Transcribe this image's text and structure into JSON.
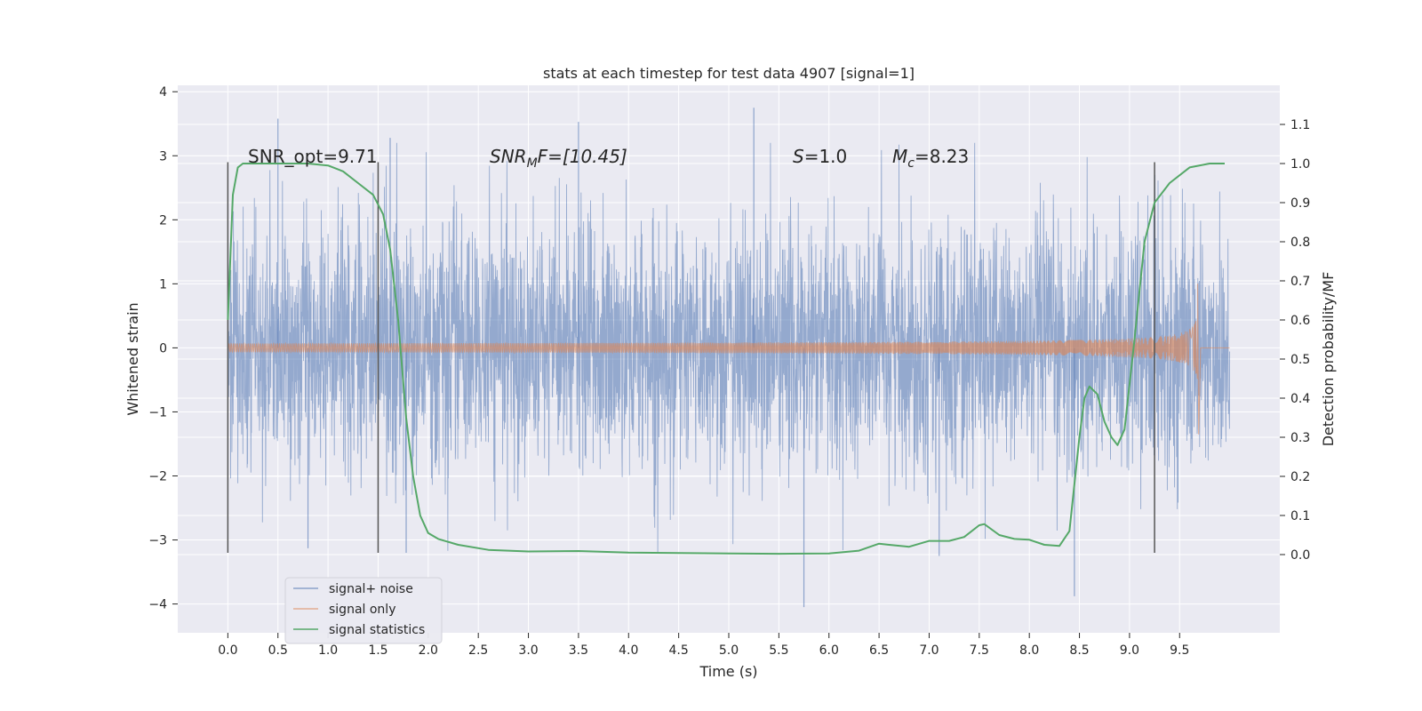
{
  "chart_data": {
    "type": "line",
    "title": "stats at each timestep for test data 4907 [signal=1]",
    "xlabel": "Time (s)",
    "ylabel_left": "Whitened strain",
    "ylabel_right": "Detection probability/MF",
    "xlim": [
      -0.5,
      10.5
    ],
    "ylim_left": [
      -4.45,
      4.1
    ],
    "ylim_right": [
      -0.2,
      1.2
    ],
    "x_ticks": [
      "0.0",
      "0.5",
      "1.0",
      "1.5",
      "2.0",
      "2.5",
      "3.0",
      "3.5",
      "4.0",
      "4.5",
      "5.0",
      "5.5",
      "6.0",
      "6.5",
      "7.0",
      "7.5",
      "8.0",
      "8.5",
      "9.0",
      "9.5"
    ],
    "y_ticks_left": [
      "4",
      "3",
      "2",
      "1",
      "0",
      "−1",
      "−2",
      "−3",
      "−4"
    ],
    "y_ticks_right": [
      "1.1",
      "1.0",
      "0.9",
      "0.8",
      "0.7",
      "0.6",
      "0.5",
      "0.4",
      "0.3",
      "0.2",
      "0.1",
      "0.0"
    ],
    "grid": true,
    "legend_position": "lower-left",
    "annotations": {
      "snr_opt": "SNR_opt=9.71",
      "snr_mf_prefix": "SNR",
      "snr_mf_sub": "M",
      "snr_mf_suffix": "F=[10.45]",
      "s_prefix": "S",
      "s_value": "=1.0",
      "mc_prefix": "M",
      "mc_sub": "c",
      "mc_value": "=8.23"
    },
    "vertical_markers_x": [
      0.0,
      1.5,
      9.25
    ],
    "series": [
      {
        "name": "signal+ noise",
        "color": "#4c72b0",
        "x_range": [
          0.0,
          10.0
        ],
        "envelope_typical": [
          -1.9,
          2.0
        ],
        "spikes": [
          {
            "x": 0.5,
            "y": 3.58
          },
          {
            "x": 1.62,
            "y": 3.28
          },
          {
            "x": 3.5,
            "y": 3.53
          },
          {
            "x": 5.25,
            "y": 3.75
          },
          {
            "x": 1.78,
            "y": -3.2
          },
          {
            "x": 0.8,
            "y": -3.13
          },
          {
            "x": 5.75,
            "y": -4.05
          },
          {
            "x": 8.45,
            "y": -3.88
          },
          {
            "x": 7.1,
            "y": -3.25
          }
        ]
      },
      {
        "name": "signal only",
        "color": "#dd8452",
        "x_range": [
          0.0,
          10.0
        ],
        "chirp_merger_x": 9.68,
        "chirp_peak_amplitude": 1.0,
        "chirp_min": -1.35
      },
      {
        "name": "signal statistics",
        "color": "#55a868",
        "x": [
          0.0,
          0.05,
          0.1,
          0.15,
          0.25,
          0.5,
          0.8,
          1.0,
          1.15,
          1.3,
          1.45,
          1.55,
          1.62,
          1.7,
          1.78,
          1.85,
          1.92,
          2.0,
          2.1,
          2.3,
          2.6,
          3.0,
          3.5,
          4.0,
          4.5,
          5.0,
          5.5,
          6.0,
          6.3,
          6.5,
          6.6,
          6.8,
          7.0,
          7.2,
          7.35,
          7.5,
          7.55,
          7.7,
          7.85,
          8.0,
          8.15,
          8.3,
          8.4,
          8.5,
          8.55,
          8.6,
          8.68,
          8.75,
          8.82,
          8.88,
          8.95,
          9.05,
          9.15,
          9.25,
          9.4,
          9.6,
          9.8,
          9.95
        ],
        "y": [
          0.6,
          0.92,
          0.99,
          1.0,
          1.0,
          1.0,
          1.0,
          0.995,
          0.98,
          0.95,
          0.92,
          0.87,
          0.78,
          0.6,
          0.35,
          0.2,
          0.1,
          0.055,
          0.04,
          0.025,
          0.012,
          0.008,
          0.009,
          0.005,
          0.004,
          0.003,
          0.002,
          0.003,
          0.01,
          0.028,
          0.025,
          0.02,
          0.035,
          0.035,
          0.045,
          0.075,
          0.078,
          0.05,
          0.04,
          0.038,
          0.025,
          0.022,
          0.06,
          0.3,
          0.4,
          0.43,
          0.41,
          0.34,
          0.3,
          0.28,
          0.32,
          0.55,
          0.8,
          0.9,
          0.95,
          0.99,
          1.0,
          1.0
        ]
      }
    ]
  }
}
